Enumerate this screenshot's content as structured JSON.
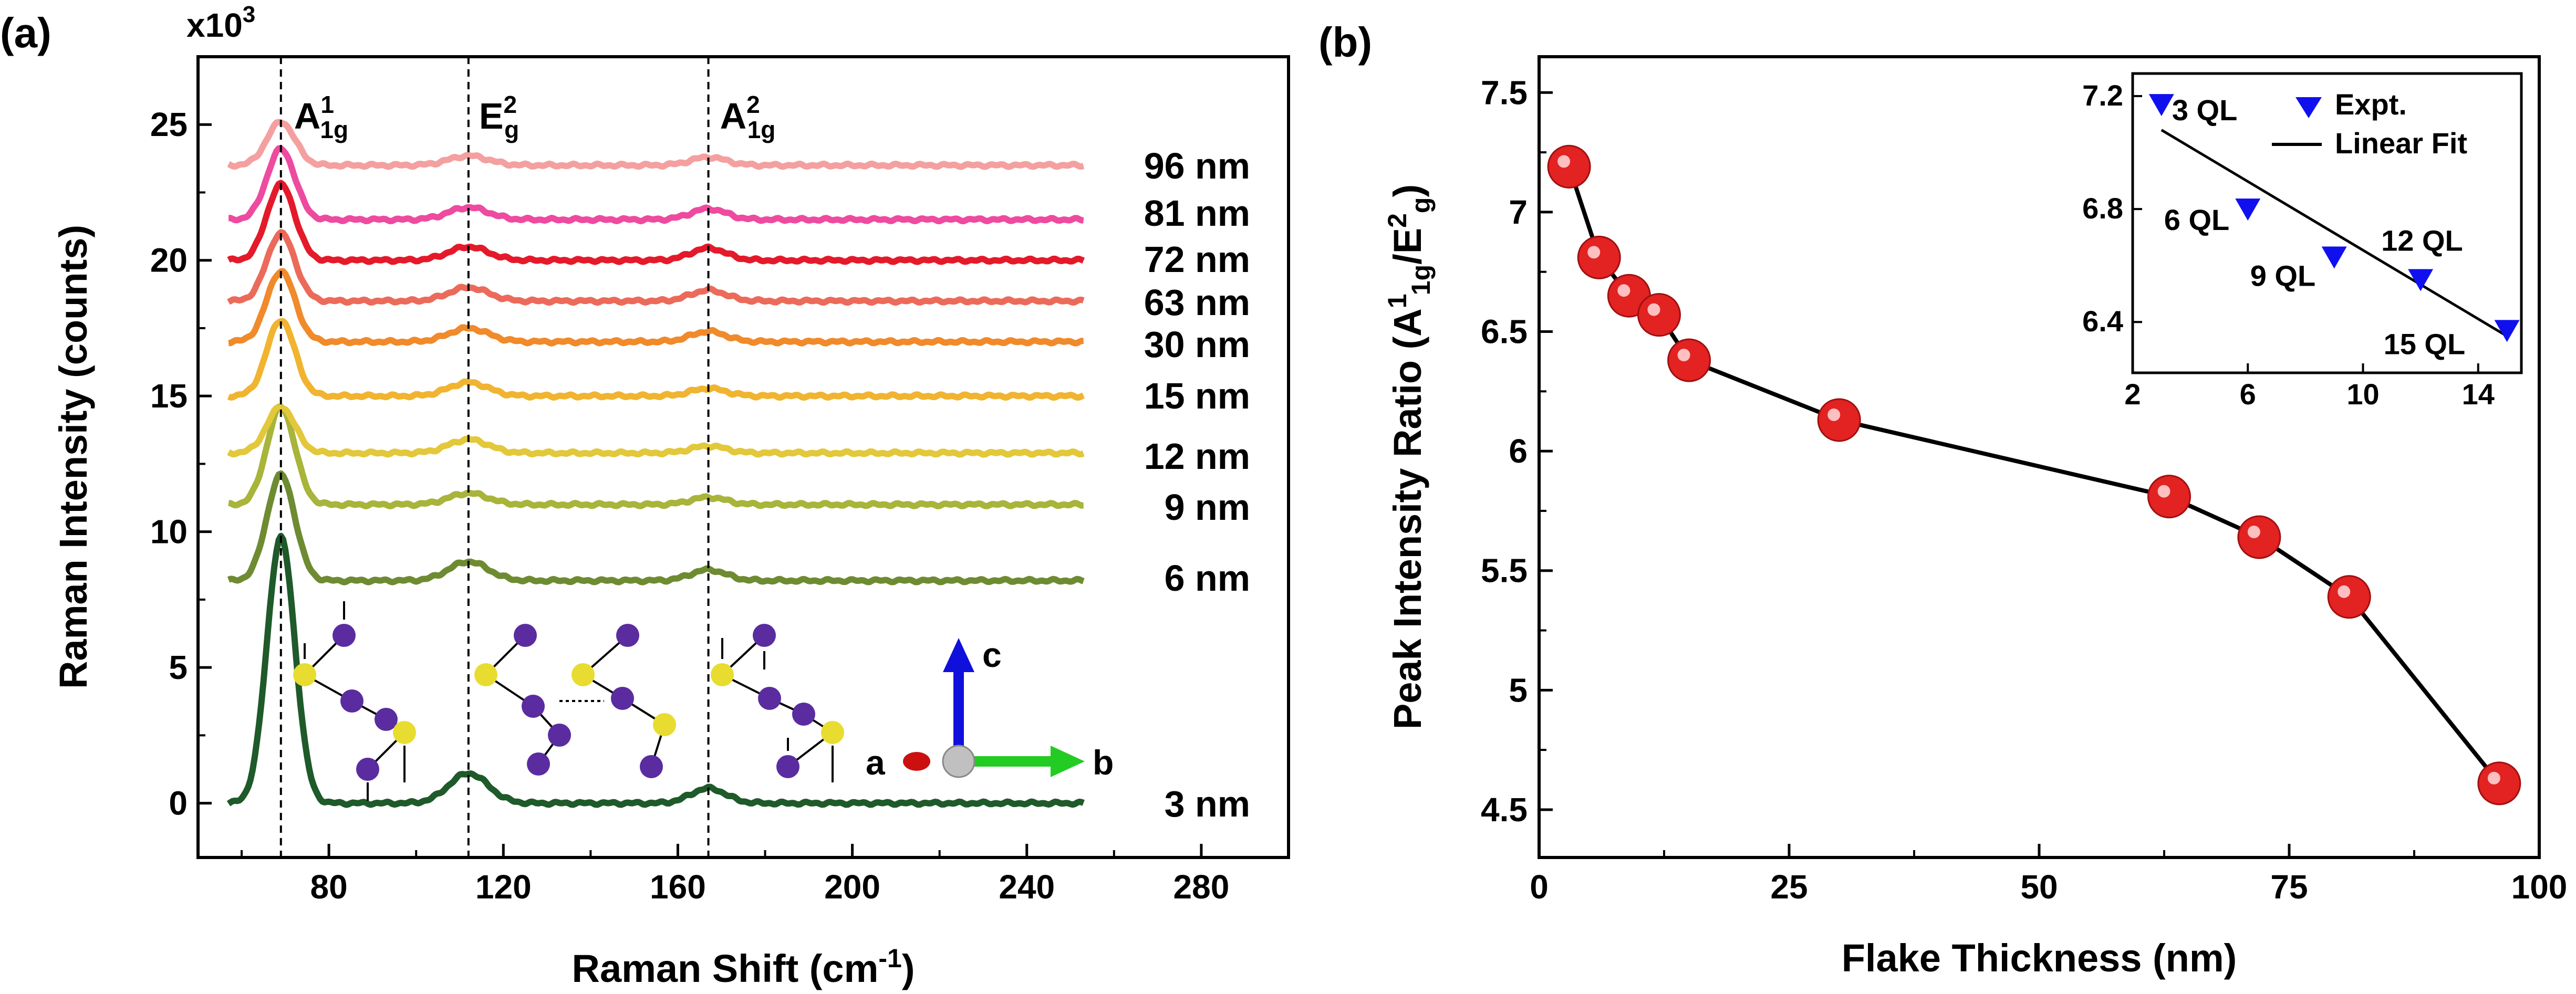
{
  "panel_a": {
    "label": "(a)",
    "multiplier_base": "x10",
    "multiplier_exp": "3",
    "ylabel": "Raman Intensity (counts)",
    "xlabel_main": "Raman Shift (cm",
    "xlabel_sup": "-1",
    "xlabel_end": ")",
    "peak_labels": [
      {
        "main": "A",
        "sup": "1",
        "sub": "1g"
      },
      {
        "main": "E",
        "sup": "2",
        "sub": "g"
      },
      {
        "main": "A",
        "sup": "2",
        "sub": "1g"
      }
    ],
    "axis_labels": {
      "a": "a",
      "b": "b",
      "c": "c"
    }
  },
  "panel_b": {
    "label": "(b)",
    "ylabel_main": "Peak Intensity Ratio (A",
    "ylabel_sup1": "1",
    "ylabel_sub1": "1g",
    "ylabel_mid": "/E",
    "ylabel_sup2": "2",
    "ylabel_sub2": "g",
    "ylabel_end": ")",
    "xlabel": "Flake Thickness (nm)",
    "inset_legend": [
      "Expt.",
      "Linear Fit"
    ]
  },
  "colors": {
    "curves": [
      "#1f5a2a",
      "#6e8b32",
      "#a8b43a",
      "#e2c83a",
      "#f0b430",
      "#f08a2a",
      "#ec6a5a",
      "#e41a2a",
      "#ee4aa0",
      "#f4a0a0"
    ],
    "marker_fill": "#e32222",
    "inset_marker": "#1010ee",
    "axis_blue": "#1010dd",
    "axis_green": "#22cc22",
    "axis_red": "#cc1010",
    "atom_yellow": "#e8dc30",
    "atom_purple": "#5a2ca0"
  },
  "chart_data": [
    {
      "type": "line",
      "xlim": [
        50,
        300
      ],
      "ylim": [
        -2000,
        27500
      ],
      "xticks": [
        80,
        120,
        160,
        200,
        240,
        280
      ],
      "yticks": [
        0,
        5,
        10,
        15,
        20,
        25
      ],
      "peak_positions": [
        69,
        112,
        167
      ],
      "series": [
        {
          "name": "3 nm",
          "offset": 0,
          "peaks": [
            9800,
            1100,
            550
          ]
        },
        {
          "name": "6 nm",
          "offset": 8200,
          "peaks": [
            3900,
            700,
            400
          ]
        },
        {
          "name": "9 nm",
          "offset": 11000,
          "peaks": [
            3600,
            420,
            270
          ]
        },
        {
          "name": "12 nm",
          "offset": 12900,
          "peaks": [
            1700,
            500,
            260
          ]
        },
        {
          "name": "15 nm",
          "offset": 15000,
          "peaks": [
            2800,
            500,
            280
          ]
        },
        {
          "name": "30 nm",
          "offset": 17000,
          "peaks": [
            2600,
            500,
            380
          ]
        },
        {
          "name": "63 nm",
          "offset": 18500,
          "peaks": [
            2500,
            500,
            400
          ]
        },
        {
          "name": "72 nm",
          "offset": 20000,
          "peaks": [
            2800,
            500,
            450
          ]
        },
        {
          "name": "81 nm",
          "offset": 21500,
          "peaks": [
            2600,
            450,
            400
          ]
        },
        {
          "name": "96 nm",
          "offset": 23500,
          "peaks": [
            1600,
            350,
            300
          ]
        }
      ],
      "xlabel": "Raman Shift (cm-1)",
      "ylabel": "Raman Intensity (counts)"
    },
    {
      "type": "scatter",
      "xlim": [
        0,
        100
      ],
      "ylim": [
        4.3,
        7.65
      ],
      "xticks": [
        0,
        25,
        50,
        75,
        100
      ],
      "yticks": [
        4.5,
        5,
        5.5,
        6,
        6.5,
        7,
        7.5
      ],
      "ytick_labels": [
        "4.5",
        "5",
        "5.5",
        "6",
        "6.5",
        "7",
        "7.5"
      ],
      "x": [
        3,
        6,
        9,
        12,
        15,
        30,
        63,
        72,
        81,
        96
      ],
      "y": [
        7.19,
        6.81,
        6.65,
        6.57,
        6.38,
        6.13,
        5.81,
        5.64,
        5.39,
        4.61
      ],
      "xlabel": "Flake Thickness (nm)",
      "ylabel": "Peak Intensity Ratio (A1 1g/E2 g)"
    },
    {
      "type": "scatter",
      "xlim": [
        2,
        15.5
      ],
      "ylim": [
        6.22,
        7.28
      ],
      "xticks": [
        2,
        6,
        10,
        14
      ],
      "yticks": [
        6.4,
        6.8,
        7.2
      ],
      "ytick_labels": [
        "6.4",
        "6.8",
        "7.2"
      ],
      "series": [
        {
          "name": "Expt.",
          "x": [
            3,
            6,
            9,
            12,
            15
          ],
          "y": [
            7.17,
            6.8,
            6.63,
            6.55,
            6.37
          ],
          "labels": [
            "3 QL",
            "6 QL",
            "9 QL",
            "12 QL",
            "15 QL"
          ]
        },
        {
          "name": "Linear Fit",
          "x": [
            3,
            15
          ],
          "y": [
            7.08,
            6.35
          ]
        }
      ]
    }
  ]
}
